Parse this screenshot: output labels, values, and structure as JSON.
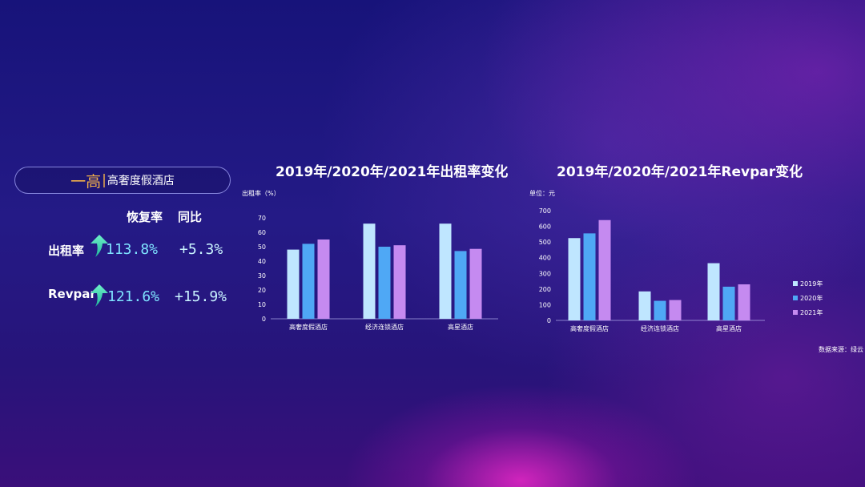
{
  "left_panel": {
    "tag": "一高",
    "separator": "|",
    "category": "高奢度假酒店",
    "col_recovery": "恢复率",
    "col_yoy": "同比",
    "metrics": [
      {
        "label": "出租率",
        "recovery": "113.8%",
        "yoy": "+5.3%"
      },
      {
        "label": "Revpar",
        "recovery": "121.6%",
        "yoy": "+15.9%"
      }
    ],
    "icon": "up-arrow-icon",
    "accent_color": "#f2b04a",
    "value_color": "#7fe3ff"
  },
  "chart_data": [
    {
      "type": "bar",
      "title": "2019年/2020年/2021年出租率变化",
      "ylabel": "出租率（%）",
      "categories": [
        "高奢度假酒店",
        "经济连锁酒店",
        "高星酒店"
      ],
      "series": [
        {
          "name": "2019年",
          "values": [
            48,
            66,
            66
          ]
        },
        {
          "name": "2020年",
          "values": [
            52,
            50,
            47
          ]
        },
        {
          "name": "2021年",
          "values": [
            55,
            51,
            48.5
          ]
        }
      ],
      "ylim": [
        0,
        70
      ],
      "yticks": [
        0,
        10,
        20,
        30,
        40,
        50,
        60,
        70
      ],
      "grid": false
    },
    {
      "type": "bar",
      "title": "2019年/2020年/2021年Revpar变化",
      "ylabel": "单位：元",
      "categories": [
        "高奢度假酒店",
        "经济连锁酒店",
        "高星酒店"
      ],
      "series": [
        {
          "name": "2019年",
          "values": [
            525,
            185,
            365
          ]
        },
        {
          "name": "2020年",
          "values": [
            555,
            125,
            215
          ]
        },
        {
          "name": "2021年",
          "values": [
            640,
            130,
            230
          ]
        }
      ],
      "ylim": [
        0,
        700
      ],
      "yticks": [
        0,
        100,
        200,
        300,
        400,
        500,
        600,
        700
      ],
      "grid": false,
      "legend": {
        "placement": "right",
        "entries": [
          "2019年",
          "2020年",
          "2021年"
        ]
      }
    }
  ],
  "series_colors": [
    "#bfe6ff",
    "#4fa8f5",
    "#c58af0"
  ],
  "source": "数据来源：绿云"
}
